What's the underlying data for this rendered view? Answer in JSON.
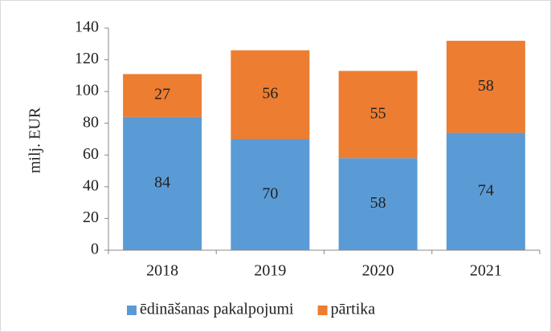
{
  "chart_data": {
    "type": "stacked_bar",
    "y_label": "milj. EUR",
    "categories": [
      "2018",
      "2019",
      "2020",
      "2021"
    ],
    "series": [
      {
        "name": "ēdināšanas pakalpojumi",
        "color": "#5b9bd5",
        "values": [
          84,
          70,
          58,
          74
        ]
      },
      {
        "name": "pārtika",
        "color": "#ed7d31",
        "values": [
          27,
          56,
          55,
          58
        ]
      }
    ],
    "ylim": [
      0,
      140
    ],
    "yticks": [
      0,
      20,
      40,
      60,
      80,
      100,
      120,
      140
    ],
    "legend": "bottom"
  }
}
